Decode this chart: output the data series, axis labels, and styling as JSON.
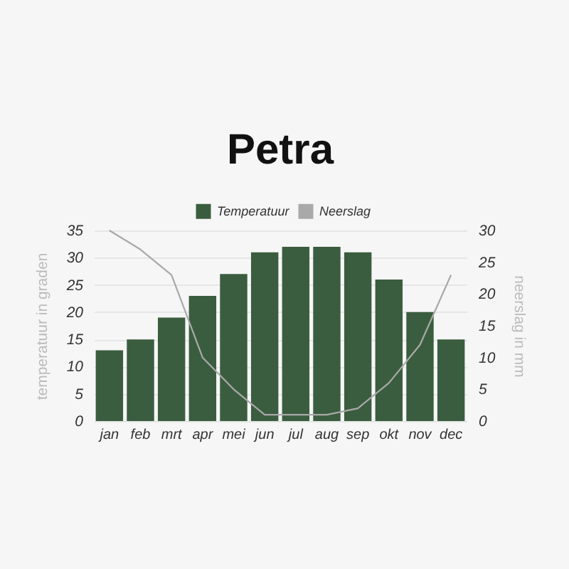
{
  "chart_data": {
    "type": "bar",
    "title": "Petra",
    "categories": [
      "jan",
      "feb",
      "mrt",
      "apr",
      "mei",
      "jun",
      "jul",
      "aug",
      "sep",
      "okt",
      "nov",
      "dec"
    ],
    "series": [
      {
        "name": "Temperatuur",
        "color": "#3b5d3f",
        "values": [
          13,
          15,
          19,
          23,
          27,
          31,
          32,
          32,
          31,
          26,
          20,
          15
        ]
      },
      {
        "name": "Neerslag",
        "type": "line",
        "axis": "y2",
        "color": "#a9a9a9",
        "values": [
          30,
          27,
          23,
          10,
          5,
          1,
          1,
          1,
          2,
          6,
          12,
          23
        ]
      }
    ],
    "ylabel": "temperatuur in graden",
    "y2label": "neerslag in mm",
    "ylim": [
      0,
      35
    ],
    "yticks": [
      0,
      5,
      10,
      15,
      20,
      25,
      30,
      35
    ],
    "y2lim": [
      0,
      30
    ],
    "y2ticks": [
      0,
      5,
      10,
      15,
      20,
      25,
      30
    ],
    "grid": "y",
    "legend": "top"
  }
}
